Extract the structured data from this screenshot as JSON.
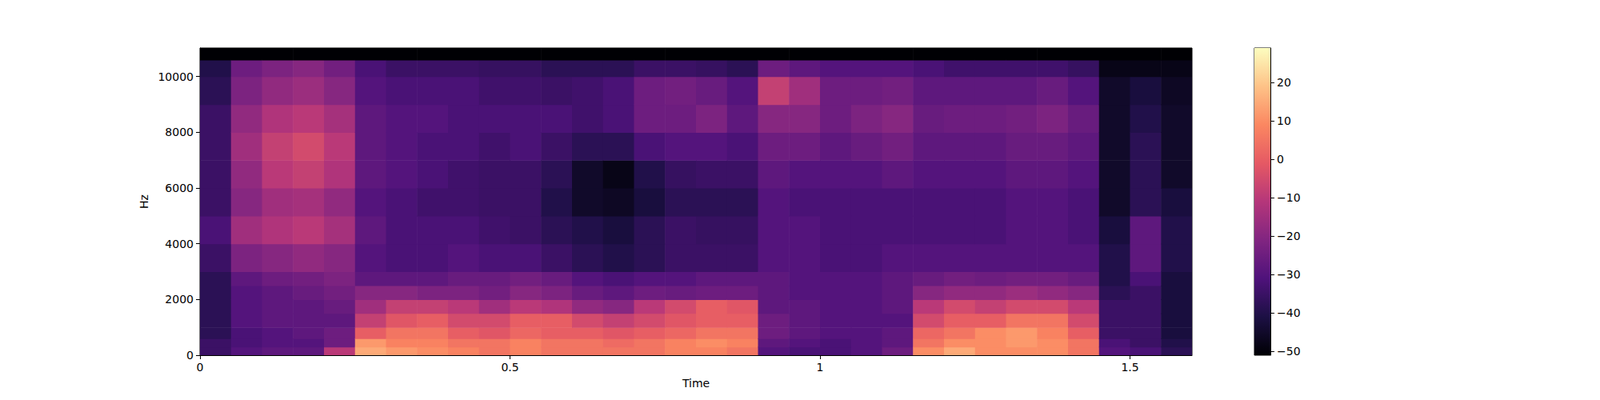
{
  "chart_data": {
    "type": "spectrogram",
    "xlabel": "Time",
    "ylabel": "Hz",
    "xlim": [
      0,
      1.6
    ],
    "xticks": [
      0,
      0.5,
      1,
      1.5
    ],
    "ylim": [
      0,
      11025
    ],
    "yticks": [
      0,
      2000,
      4000,
      6000,
      8000,
      10000
    ],
    "x_edges": [
      0,
      0.05,
      0.1,
      0.15,
      0.2,
      0.25,
      0.3,
      0.35,
      0.4,
      0.45,
      0.5,
      0.55,
      0.6,
      0.65,
      0.7,
      0.75,
      0.8,
      0.85,
      0.9,
      0.95,
      1.0,
      1.05,
      1.1,
      1.15,
      1.2,
      1.25,
      1.3,
      1.35,
      1.4,
      1.45,
      1.5,
      1.55,
      1.6
    ],
    "y_edges": [
      0,
      300,
      600,
      1000,
      1500,
      2000,
      2500,
      3000,
      4000,
      5000,
      6000,
      7000,
      8000,
      9000,
      10000,
      10600,
      11025
    ],
    "values": [
      [
        -35,
        -35,
        -38,
        -38,
        -38,
        -38,
        -38,
        -35,
        -32,
        -35,
        -35,
        -35,
        -35,
        -38,
        -40,
        -51
      ],
      [
        -30,
        -32,
        -32,
        -30,
        -30,
        -30,
        -28,
        -22,
        -15,
        -20,
        -18,
        -15,
        -18,
        -22,
        -25,
        -51
      ],
      [
        -28,
        -30,
        -30,
        -28,
        -28,
        -28,
        -25,
        -20,
        -12,
        -15,
        -10,
        -8,
        -12,
        -18,
        -22,
        -51
      ],
      [
        -28,
        -30,
        -28,
        -28,
        -28,
        -26,
        -24,
        -18,
        -10,
        -14,
        -8,
        -5,
        -10,
        -16,
        -20,
        -51
      ],
      [
        -10,
        -25,
        -25,
        -28,
        -26,
        -24,
        -22,
        -20,
        -14,
        -18,
        -12,
        -10,
        -14,
        -20,
        -24,
        -51
      ],
      [
        15,
        12,
        0,
        -8,
        -15,
        -20,
        -28,
        -30,
        -28,
        -30,
        -28,
        -28,
        -28,
        -30,
        -32,
        -51
      ],
      [
        12,
        8,
        5,
        -2,
        -8,
        -20,
        -28,
        -32,
        -32,
        -32,
        -30,
        -30,
        -30,
        -32,
        -35,
        -51
      ],
      [
        10,
        8,
        5,
        0,
        -8,
        -22,
        -28,
        -32,
        -32,
        -34,
        -32,
        -32,
        -30,
        -32,
        -35,
        -51
      ],
      [
        8,
        5,
        0,
        -5,
        -10,
        -22,
        -26,
        -30,
        -32,
        -34,
        -34,
        -32,
        -32,
        -32,
        -35,
        -51
      ],
      [
        5,
        5,
        -2,
        -5,
        -15,
        -24,
        -26,
        -32,
        -34,
        -35,
        -35,
        -34,
        -32,
        -34,
        -36,
        -51
      ],
      [
        8,
        8,
        2,
        0,
        -10,
        -20,
        -24,
        -32,
        -35,
        -35,
        -35,
        -32,
        -32,
        -34,
        -36,
        -51
      ],
      [
        5,
        5,
        0,
        0,
        -12,
        -22,
        -26,
        -35,
        -38,
        -40,
        -38,
        -35,
        -32,
        -35,
        -38,
        -51
      ],
      [
        5,
        5,
        0,
        -5,
        -18,
        -26,
        -30,
        -38,
        -40,
        -45,
        -45,
        -38,
        -34,
        -34,
        -38,
        -51
      ],
      [
        5,
        3,
        -2,
        -8,
        -20,
        -28,
        -32,
        -40,
        -42,
        -46,
        -48,
        -38,
        -32,
        -32,
        -38,
        -51
      ],
      [
        5,
        5,
        0,
        -5,
        -10,
        -25,
        -30,
        -38,
        -38,
        -42,
        -40,
        -32,
        -25,
        -25,
        -35,
        -51
      ],
      [
        8,
        8,
        2,
        -2,
        -5,
        -26,
        -30,
        -35,
        -35,
        -38,
        -36,
        -30,
        -25,
        -24,
        -35,
        -51
      ],
      [
        8,
        10,
        5,
        0,
        0,
        -25,
        -28,
        -35,
        -36,
        -38,
        -35,
        -30,
        -22,
        -26,
        -36,
        -51
      ],
      [
        5,
        8,
        5,
        0,
        -2,
        -25,
        -28,
        -35,
        -36,
        -38,
        -35,
        -32,
        -28,
        -30,
        -38,
        -51
      ],
      [
        -30,
        -28,
        -25,
        -25,
        -28,
        -28,
        -28,
        -30,
        -30,
        -30,
        -28,
        -25,
        -20,
        -8,
        -25,
        -51
      ],
      [
        -32,
        -30,
        -28,
        -28,
        -28,
        -30,
        -30,
        -30,
        -30,
        -32,
        -30,
        -25,
        -20,
        -15,
        -28,
        -51
      ],
      [
        -32,
        -32,
        -30,
        -30,
        -30,
        -30,
        -30,
        -32,
        -32,
        -32,
        -30,
        -28,
        -25,
        -25,
        -30,
        -51
      ],
      [
        -30,
        -30,
        -30,
        -30,
        -30,
        -30,
        -30,
        -32,
        -32,
        -32,
        -30,
        -26,
        -22,
        -25,
        -30,
        -51
      ],
      [
        -25,
        -28,
        -28,
        -30,
        -28,
        -28,
        -28,
        -30,
        -32,
        -32,
        -28,
        -24,
        -20,
        -24,
        -30,
        -51
      ],
      [
        10,
        5,
        2,
        -5,
        -10,
        -20,
        -26,
        -30,
        -32,
        -32,
        -30,
        -28,
        -26,
        -28,
        -32,
        -51
      ],
      [
        15,
        10,
        5,
        0,
        -5,
        -18,
        -24,
        -30,
        -32,
        -32,
        -30,
        -28,
        -25,
        -28,
        -34,
        -51
      ],
      [
        10,
        10,
        10,
        0,
        -8,
        -18,
        -25,
        -30,
        -32,
        -32,
        -30,
        -28,
        -25,
        -28,
        -34,
        -51
      ],
      [
        10,
        12,
        12,
        5,
        -5,
        -16,
        -24,
        -30,
        -30,
        -30,
        -28,
        -26,
        -24,
        -28,
        -34,
        -51
      ],
      [
        10,
        10,
        8,
        5,
        -5,
        -18,
        -24,
        -30,
        -30,
        -30,
        -28,
        -26,
        -22,
        -26,
        -34,
        -51
      ],
      [
        5,
        5,
        0,
        -5,
        -10,
        -20,
        -26,
        -30,
        -32,
        -32,
        -30,
        -28,
        -26,
        -30,
        -36,
        -51
      ],
      [
        -30,
        -32,
        -35,
        -35,
        -35,
        -38,
        -40,
        -40,
        -42,
        -45,
        -45,
        -45,
        -45,
        -45,
        -48,
        -51
      ],
      [
        -32,
        -35,
        -35,
        -35,
        -35,
        -35,
        -32,
        -28,
        -28,
        -38,
        -38,
        -38,
        -40,
        -42,
        -48,
        -51
      ],
      [
        -38,
        -40,
        -42,
        -42,
        -42,
        -42,
        -42,
        -40,
        -40,
        -42,
        -45,
        -45,
        -45,
        -46,
        -48,
        -51
      ]
    ],
    "colorbar_range": [
      -51,
      29
    ],
    "colorbar_ticks": [
      {
        "value": -50,
        "label": "−50"
      },
      {
        "value": -40,
        "label": "−40"
      },
      {
        "value": -30,
        "label": "−30"
      },
      {
        "value": -20,
        "label": "−20"
      },
      {
        "value": -10,
        "label": "−10"
      },
      0,
      10,
      20
    ]
  }
}
